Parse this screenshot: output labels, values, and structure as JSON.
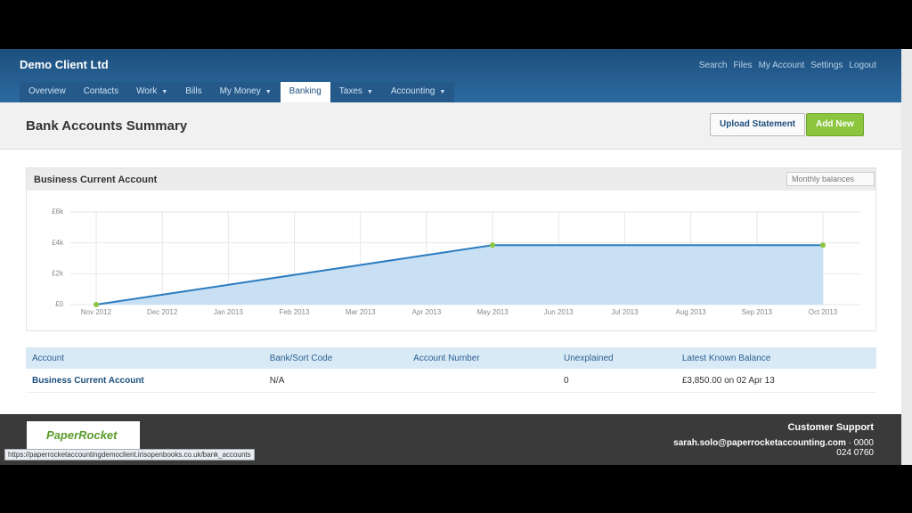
{
  "header": {
    "brand": "Demo Client Ltd",
    "top_links": [
      "Search",
      "Files",
      "My Account",
      "Settings",
      "Logout"
    ],
    "nav": [
      {
        "label": "Overview"
      },
      {
        "label": "Contacts"
      },
      {
        "label": "Work",
        "menu": true
      },
      {
        "label": "Bills"
      },
      {
        "label": "My Money",
        "menu": true
      },
      {
        "label": "Banking",
        "active": true
      },
      {
        "label": "Taxes",
        "menu": true
      },
      {
        "label": "Accounting",
        "menu": true
      }
    ]
  },
  "page": {
    "title": "Bank Accounts Summary",
    "buttons": [
      "Upload Statement",
      "Add New"
    ]
  },
  "panel": {
    "account": "Business Current Account",
    "period": "Monthly balances"
  },
  "chart_data": {
    "type": "area",
    "categories": [
      "Nov 2012",
      "Dec 2012",
      "Jan 2013",
      "Feb 2013",
      "Mar 2013",
      "Apr 2013",
      "May 2013",
      "Jun 2013",
      "Jul 2013",
      "Aug 2013",
      "Sep 2013",
      "Oct 2013"
    ],
    "series": [
      {
        "name": "Balance",
        "color": "#2b7bbf",
        "values": [
          0,
          642,
          1283,
          1925,
          2567,
          3208,
          3850,
          3850,
          3850,
          3850,
          3850,
          3850
        ]
      }
    ],
    "ylim": [
      0,
      6000
    ],
    "yticks": [
      {
        "value": 0,
        "label": "£0"
      },
      {
        "value": 2000,
        "label": "£2k"
      },
      {
        "value": 4000,
        "label": "£4k"
      },
      {
        "value": 6000,
        "label": "£6k"
      }
    ],
    "grid": true
  },
  "table": {
    "columns": [
      "Account",
      "Bank/Sort Code",
      "Account Number",
      "Unexplained",
      "Latest Known Balance"
    ],
    "rows": [
      [
        "Business Current Account",
        "N/A",
        "",
        "0",
        "£3,850.00 on 02 Apr 13"
      ]
    ]
  },
  "footer": {
    "heading": "Customer Support",
    "email": "sarah.solo@paperrocketaccounting.com",
    "phone": "0000 024 0760",
    "logo": "PaperRocket"
  },
  "status_url": "https://paperrocketaccountingdemoclient.irisopenbooks.co.uk/bank_accounts"
}
